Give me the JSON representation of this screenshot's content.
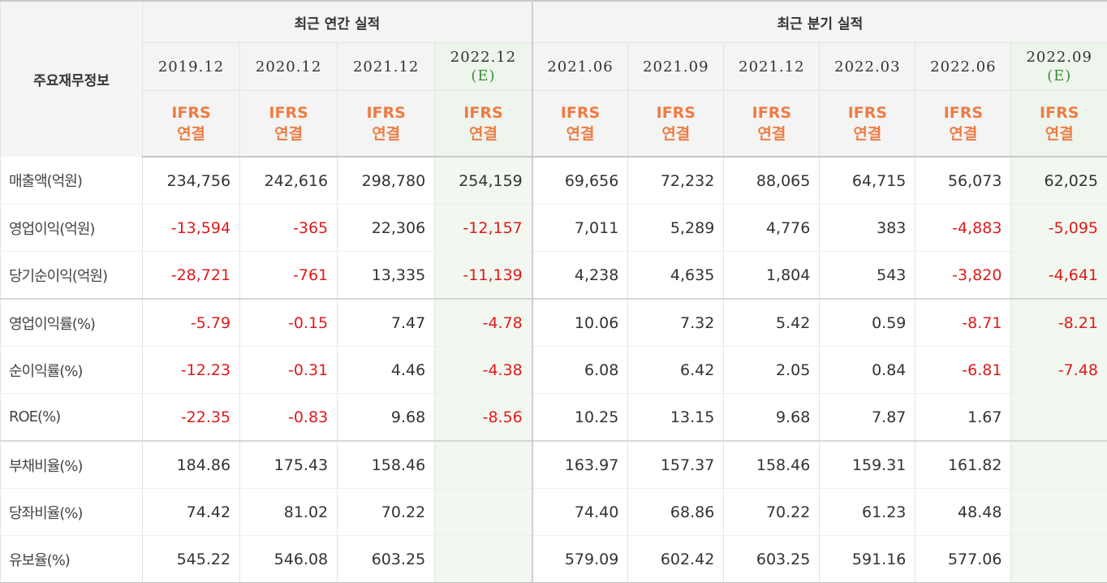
{
  "corner_label": "주요재무정보",
  "group_annual": "최근 연간 실적",
  "group_quarter": "최근 분기 실적",
  "periods": [
    {
      "label": "2019.12",
      "est": "",
      "ifrs": "IFRS",
      "consol": "연결"
    },
    {
      "label": "2020.12",
      "est": "",
      "ifrs": "IFRS",
      "consol": "연결"
    },
    {
      "label": "2021.12",
      "est": "",
      "ifrs": "IFRS",
      "consol": "연결"
    },
    {
      "label": "2022.12",
      "est": "(E)",
      "ifrs": "IFRS",
      "consol": "연결"
    },
    {
      "label": "2021.06",
      "est": "",
      "ifrs": "IFRS",
      "consol": "연결"
    },
    {
      "label": "2021.09",
      "est": "",
      "ifrs": "IFRS",
      "consol": "연결"
    },
    {
      "label": "2021.12",
      "est": "",
      "ifrs": "IFRS",
      "consol": "연결"
    },
    {
      "label": "2022.03",
      "est": "",
      "ifrs": "IFRS",
      "consol": "연결"
    },
    {
      "label": "2022.06",
      "est": "",
      "ifrs": "IFRS",
      "consol": "연결"
    },
    {
      "label": "2022.09",
      "est": "(E)",
      "ifrs": "IFRS",
      "consol": "연결"
    }
  ],
  "rows": [
    {
      "label": "매출액(억원)",
      "values": [
        "234,756",
        "242,616",
        "298,780",
        "254,159",
        "69,656",
        "72,232",
        "88,065",
        "64,715",
        "56,073",
        "62,025"
      ]
    },
    {
      "label": "영업이익(억원)",
      "values": [
        "-13,594",
        "-365",
        "22,306",
        "-12,157",
        "7,011",
        "5,289",
        "4,776",
        "383",
        "-4,883",
        "-5,095"
      ]
    },
    {
      "label": "당기순이익(억원)",
      "values": [
        "-28,721",
        "-761",
        "13,335",
        "-11,139",
        "4,238",
        "4,635",
        "1,804",
        "543",
        "-3,820",
        "-4,641"
      ]
    },
    {
      "label": "영업이익률(%)",
      "values": [
        "-5.79",
        "-0.15",
        "7.47",
        "-4.78",
        "10.06",
        "7.32",
        "5.42",
        "0.59",
        "-8.71",
        "-8.21"
      ]
    },
    {
      "label": "순이익률(%)",
      "values": [
        "-12.23",
        "-0.31",
        "4.46",
        "-4.38",
        "6.08",
        "6.42",
        "2.05",
        "0.84",
        "-6.81",
        "-7.48"
      ]
    },
    {
      "label": "ROE(%)",
      "values": [
        "-22.35",
        "-0.83",
        "9.68",
        "-8.56",
        "10.25",
        "13.15",
        "9.68",
        "7.87",
        "1.67",
        ""
      ]
    },
    {
      "label": "부채비율(%)",
      "values": [
        "184.86",
        "175.43",
        "158.46",
        "",
        "163.97",
        "157.37",
        "158.46",
        "159.31",
        "161.82",
        ""
      ]
    },
    {
      "label": "당좌비율(%)",
      "values": [
        "74.42",
        "81.02",
        "70.22",
        "",
        "74.40",
        "68.86",
        "70.22",
        "61.23",
        "48.48",
        ""
      ]
    },
    {
      "label": "유보율(%)",
      "values": [
        "545.22",
        "546.08",
        "603.25",
        "",
        "579.09",
        "602.42",
        "603.25",
        "591.16",
        "577.06",
        ""
      ]
    }
  ],
  "colors": {
    "negative": "#dd1b1b",
    "ifrs": "#ef7c43",
    "estimate_mark": "#3d8f3a",
    "estimate_bg": "#f2f7ef",
    "header_bg": "#f4f4f4"
  }
}
